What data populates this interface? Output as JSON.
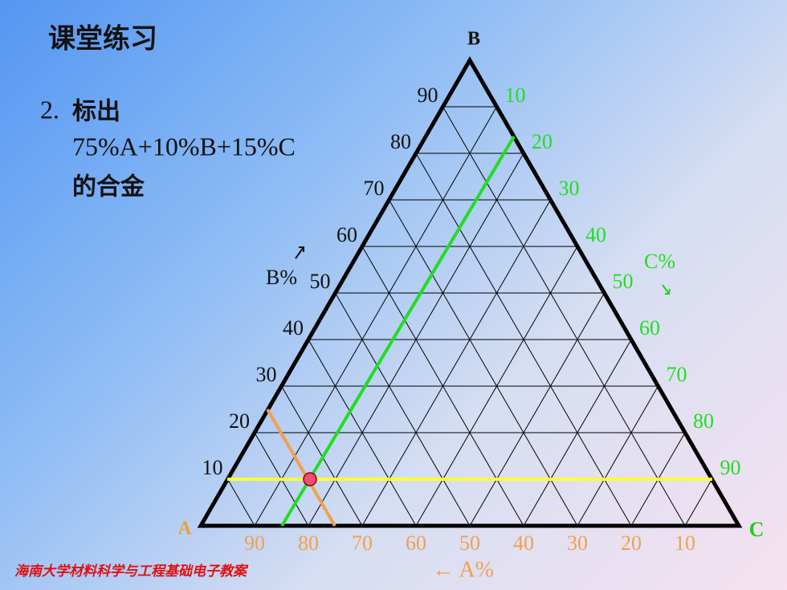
{
  "title": "课堂练习",
  "problem": {
    "number": "2.",
    "lines": [
      "标出",
      "75%A+10%B+15%C",
      "的合金"
    ]
  },
  "diagram": {
    "vertices": [
      "A",
      "B",
      "C"
    ],
    "b_axis": {
      "label": "B%",
      "ticks": [
        10,
        20,
        30,
        40,
        50,
        60,
        70,
        80,
        90
      ]
    },
    "c_axis": {
      "label": "C%",
      "ticks": [
        10,
        20,
        30,
        40,
        50,
        60,
        70,
        80,
        90
      ]
    },
    "a_axis": {
      "label": "← A%",
      "ticks": [
        90,
        80,
        70,
        60,
        50,
        40,
        30,
        20,
        10
      ]
    }
  },
  "footer": "海南大学材料科学与工程基础电子教案"
}
